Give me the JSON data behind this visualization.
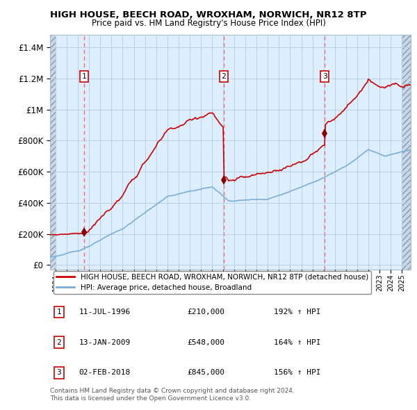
{
  "title": "HIGH HOUSE, BEECH ROAD, WROXHAM, NORWICH, NR12 8TP",
  "subtitle": "Price paid vs. HM Land Registry's House Price Index (HPI)",
  "ylabel_ticks": [
    "£0",
    "£200K",
    "£400K",
    "£600K",
    "£800K",
    "£1M",
    "£1.2M",
    "£1.4M"
  ],
  "ytick_values": [
    0,
    200000,
    400000,
    600000,
    800000,
    1000000,
    1200000,
    1400000
  ],
  "ylim": [
    -30000,
    1480000
  ],
  "xlim_start": 1993.5,
  "xlim_end": 2025.8,
  "sales": [
    {
      "date_decimal": 1996.53,
      "price": 210000,
      "label": "1"
    },
    {
      "date_decimal": 2009.04,
      "price": 548000,
      "label": "2"
    },
    {
      "date_decimal": 2018.09,
      "price": 845000,
      "label": "3"
    }
  ],
  "sale_labels_info": [
    {
      "n": "1",
      "date": "11-JUL-1996",
      "price": "£210,000",
      "pct": "192% ↑ HPI"
    },
    {
      "n": "2",
      "date": "13-JAN-2009",
      "price": "£548,000",
      "pct": "164% ↑ HPI"
    },
    {
      "n": "3",
      "date": "02-FEB-2018",
      "price": "£845,000",
      "pct": "156% ↑ HPI"
    }
  ],
  "legend_house": "HIGH HOUSE, BEECH ROAD, WROXHAM, NORWICH, NR12 8TP (detached house)",
  "legend_hpi": "HPI: Average price, detached house, Broadland",
  "footer": "Contains HM Land Registry data © Crown copyright and database right 2024.\nThis data is licensed under the Open Government Licence v3.0.",
  "house_color": "#cc0000",
  "hpi_color": "#7aaed6",
  "plot_bg_color": "#ddeeff",
  "grid_color": "#b8cfe8",
  "dashed_color": "#ff6666",
  "hatch_color": "#c8d8e8"
}
